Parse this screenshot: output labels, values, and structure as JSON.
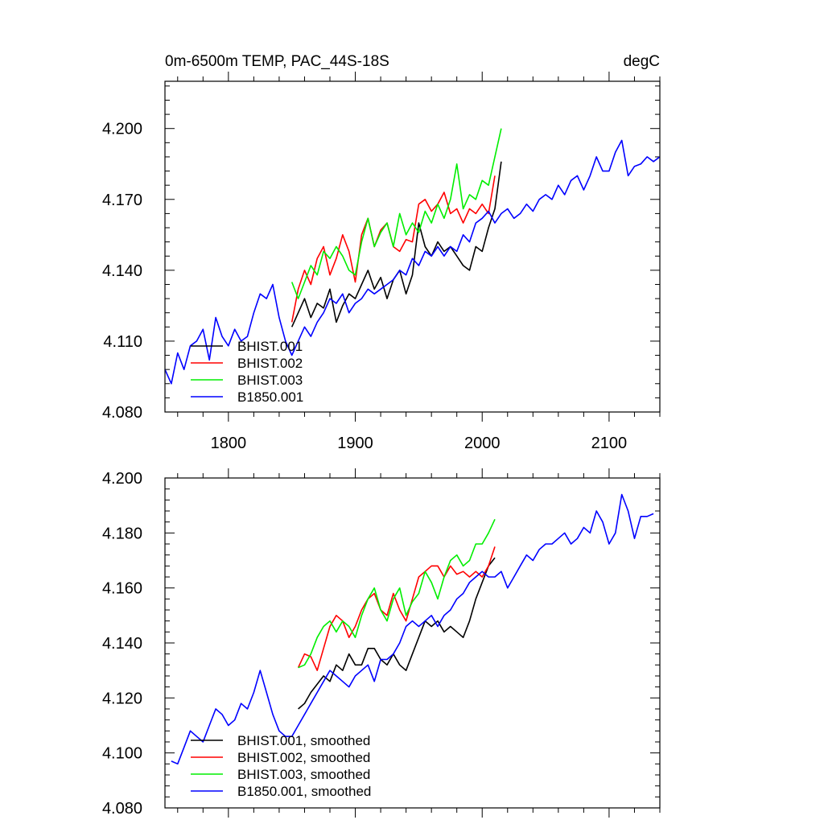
{
  "chart_data": [
    {
      "type": "line",
      "title": "0m-6500m TEMP, PAC_44S-18S",
      "units": "degC",
      "xlim": [
        1750,
        2140
      ],
      "ylim": [
        4.08,
        4.22
      ],
      "x_ticks": [
        1800,
        1900,
        2000,
        2100
      ],
      "x_tick_labels": [
        "1800",
        "1900",
        "2000",
        "2100"
      ],
      "y_ticks": [
        4.08,
        4.11,
        4.14,
        4.17,
        4.2
      ],
      "y_tick_labels": [
        "4.080",
        "4.110",
        "4.140",
        "4.170",
        "4.200"
      ],
      "legend_position": "bottom-left",
      "series": [
        {
          "name": "BHIST.001",
          "color": "#000000",
          "x": [
            1850,
            1855,
            1860,
            1865,
            1870,
            1875,
            1880,
            1885,
            1890,
            1895,
            1900,
            1905,
            1910,
            1915,
            1920,
            1925,
            1930,
            1935,
            1940,
            1945,
            1950,
            1955,
            1960,
            1965,
            1970,
            1975,
            1980,
            1985,
            1990,
            1995,
            2000,
            2005,
            2010,
            2015
          ],
          "values": [
            4.116,
            4.122,
            4.128,
            4.12,
            4.126,
            4.124,
            4.132,
            4.118,
            4.125,
            4.13,
            4.128,
            4.134,
            4.14,
            4.132,
            4.137,
            4.128,
            4.136,
            4.14,
            4.13,
            4.138,
            4.16,
            4.15,
            4.146,
            4.152,
            4.148,
            4.15,
            4.146,
            4.142,
            4.14,
            4.15,
            4.148,
            4.158,
            4.166,
            4.186
          ]
        },
        {
          "name": "BHIST.002",
          "color": "#ff0000",
          "x": [
            1850,
            1855,
            1860,
            1865,
            1870,
            1875,
            1880,
            1885,
            1890,
            1895,
            1900,
            1905,
            1910,
            1915,
            1920,
            1925,
            1930,
            1935,
            1940,
            1945,
            1950,
            1955,
            1960,
            1965,
            1970,
            1975,
            1980,
            1985,
            1990,
            1995,
            2000,
            2005,
            2010
          ],
          "values": [
            4.118,
            4.132,
            4.14,
            4.134,
            4.145,
            4.15,
            4.138,
            4.145,
            4.155,
            4.148,
            4.135,
            4.155,
            4.162,
            4.15,
            4.157,
            4.16,
            4.15,
            4.148,
            4.153,
            4.152,
            4.168,
            4.17,
            4.165,
            4.168,
            4.173,
            4.164,
            4.166,
            4.16,
            4.166,
            4.164,
            4.168,
            4.164,
            4.18
          ]
        },
        {
          "name": "BHIST.003",
          "color": "#00ee00",
          "x": [
            1850,
            1855,
            1860,
            1865,
            1870,
            1875,
            1880,
            1885,
            1890,
            1895,
            1900,
            1905,
            1910,
            1915,
            1920,
            1925,
            1930,
            1935,
            1940,
            1945,
            1950,
            1955,
            1960,
            1965,
            1970,
            1975,
            1980,
            1985,
            1990,
            1995,
            2000,
            2005,
            2010,
            2015
          ],
          "values": [
            4.135,
            4.128,
            4.135,
            4.142,
            4.138,
            4.148,
            4.145,
            4.15,
            4.146,
            4.14,
            4.138,
            4.152,
            4.162,
            4.15,
            4.156,
            4.16,
            4.15,
            4.164,
            4.155,
            4.16,
            4.156,
            4.165,
            4.16,
            4.168,
            4.162,
            4.17,
            4.185,
            4.166,
            4.172,
            4.17,
            4.178,
            4.176,
            4.188,
            4.2
          ]
        },
        {
          "name": "B1850.001",
          "color": "#0000ff",
          "x": [
            1750,
            1755,
            1760,
            1765,
            1770,
            1775,
            1780,
            1785,
            1790,
            1795,
            1800,
            1805,
            1810,
            1815,
            1820,
            1825,
            1830,
            1835,
            1840,
            1845,
            1850,
            1855,
            1860,
            1865,
            1870,
            1875,
            1880,
            1885,
            1890,
            1895,
            1900,
            1905,
            1910,
            1915,
            1920,
            1925,
            1930,
            1935,
            1940,
            1945,
            1950,
            1955,
            1960,
            1965,
            1970,
            1975,
            1980,
            1985,
            1990,
            1995,
            2000,
            2005,
            2010,
            2015,
            2020,
            2025,
            2030,
            2035,
            2040,
            2045,
            2050,
            2055,
            2060,
            2065,
            2070,
            2075,
            2080,
            2085,
            2090,
            2095,
            2100,
            2105,
            2110,
            2115,
            2120,
            2125,
            2130,
            2135,
            2140
          ],
          "values": [
            4.098,
            4.092,
            4.105,
            4.098,
            4.108,
            4.11,
            4.115,
            4.102,
            4.12,
            4.112,
            4.108,
            4.115,
            4.11,
            4.112,
            4.122,
            4.13,
            4.128,
            4.134,
            4.12,
            4.11,
            4.104,
            4.11,
            4.116,
            4.112,
            4.118,
            4.122,
            4.128,
            4.126,
            4.13,
            4.122,
            4.126,
            4.128,
            4.132,
            4.13,
            4.132,
            4.134,
            4.136,
            4.14,
            4.138,
            4.145,
            4.142,
            4.148,
            4.146,
            4.15,
            4.146,
            4.15,
            4.148,
            4.155,
            4.152,
            4.16,
            4.162,
            4.165,
            4.16,
            4.164,
            4.166,
            4.162,
            4.164,
            4.168,
            4.165,
            4.17,
            4.172,
            4.17,
            4.176,
            4.172,
            4.178,
            4.18,
            4.174,
            4.18,
            4.188,
            4.182,
            4.182,
            4.19,
            4.195,
            4.18,
            4.184,
            4.185,
            4.188,
            4.186,
            4.188
          ]
        }
      ]
    },
    {
      "type": "line",
      "title": "",
      "xlim": [
        1750,
        2140
      ],
      "ylim": [
        4.08,
        4.2
      ],
      "x_ticks": [
        1800,
        1900,
        2000,
        2100
      ],
      "y_ticks": [
        4.08,
        4.1,
        4.12,
        4.14,
        4.16,
        4.18,
        4.2
      ],
      "y_tick_labels": [
        "4.080",
        "4.100",
        "4.120",
        "4.140",
        "4.160",
        "4.180",
        "4.200"
      ],
      "legend_position": "bottom-left",
      "series": [
        {
          "name": "BHIST.001, smoothed",
          "color": "#000000",
          "x": [
            1855,
            1860,
            1865,
            1870,
            1875,
            1880,
            1885,
            1890,
            1895,
            1900,
            1905,
            1910,
            1915,
            1920,
            1925,
            1930,
            1935,
            1940,
            1945,
            1950,
            1955,
            1960,
            1965,
            1970,
            1975,
            1980,
            1985,
            1990,
            1995,
            2000,
            2005,
            2010
          ],
          "values": [
            4.116,
            4.118,
            4.122,
            4.125,
            4.128,
            4.126,
            4.132,
            4.13,
            4.136,
            4.132,
            4.132,
            4.138,
            4.138,
            4.134,
            4.132,
            4.136,
            4.132,
            4.13,
            4.136,
            4.142,
            4.148,
            4.146,
            4.148,
            4.144,
            4.146,
            4.144,
            4.142,
            4.148,
            4.156,
            4.162,
            4.168,
            4.171
          ]
        },
        {
          "name": "BHIST.002, smoothed",
          "color": "#ff0000",
          "x": [
            1855,
            1860,
            1865,
            1870,
            1875,
            1880,
            1885,
            1890,
            1895,
            1900,
            1905,
            1910,
            1915,
            1920,
            1925,
            1930,
            1935,
            1940,
            1945,
            1950,
            1955,
            1960,
            1965,
            1970,
            1975,
            1980,
            1985,
            1990,
            1995,
            2000,
            2005,
            2010
          ],
          "values": [
            4.131,
            4.136,
            4.135,
            4.13,
            4.138,
            4.146,
            4.15,
            4.148,
            4.142,
            4.146,
            4.152,
            4.156,
            4.158,
            4.152,
            4.15,
            4.158,
            4.152,
            4.148,
            4.156,
            4.164,
            4.166,
            4.168,
            4.168,
            4.164,
            4.168,
            4.165,
            4.166,
            4.164,
            4.166,
            4.164,
            4.168,
            4.175
          ]
        },
        {
          "name": "BHIST.003, smoothed",
          "color": "#00ee00",
          "x": [
            1855,
            1860,
            1865,
            1870,
            1875,
            1880,
            1885,
            1890,
            1895,
            1900,
            1905,
            1910,
            1915,
            1920,
            1925,
            1930,
            1935,
            1940,
            1945,
            1950,
            1955,
            1960,
            1965,
            1970,
            1975,
            1980,
            1985,
            1990,
            1995,
            2000,
            2005,
            2010
          ],
          "values": [
            4.131,
            4.132,
            4.136,
            4.142,
            4.146,
            4.148,
            4.144,
            4.148,
            4.146,
            4.142,
            4.15,
            4.156,
            4.16,
            4.152,
            4.148,
            4.156,
            4.16,
            4.15,
            4.155,
            4.158,
            4.166,
            4.162,
            4.156,
            4.164,
            4.17,
            4.172,
            4.168,
            4.17,
            4.176,
            4.176,
            4.18,
            4.185
          ]
        },
        {
          "name": "B1850.001, smoothed",
          "color": "#0000ff",
          "x": [
            1755,
            1760,
            1765,
            1770,
            1775,
            1780,
            1785,
            1790,
            1795,
            1800,
            1805,
            1810,
            1815,
            1820,
            1825,
            1830,
            1835,
            1840,
            1845,
            1850,
            1855,
            1860,
            1865,
            1870,
            1875,
            1880,
            1885,
            1890,
            1895,
            1900,
            1905,
            1910,
            1915,
            1920,
            1925,
            1930,
            1935,
            1940,
            1945,
            1950,
            1955,
            1960,
            1965,
            1970,
            1975,
            1980,
            1985,
            1990,
            1995,
            2000,
            2005,
            2010,
            2015,
            2020,
            2025,
            2030,
            2035,
            2040,
            2045,
            2050,
            2055,
            2060,
            2065,
            2070,
            2075,
            2080,
            2085,
            2090,
            2095,
            2100,
            2105,
            2110,
            2115,
            2120,
            2125,
            2130,
            2135
          ],
          "values": [
            4.097,
            4.096,
            4.102,
            4.108,
            4.106,
            4.104,
            4.11,
            4.116,
            4.114,
            4.11,
            4.112,
            4.118,
            4.116,
            4.122,
            4.13,
            4.122,
            4.114,
            4.108,
            4.106,
            4.106,
            4.11,
            4.114,
            4.118,
            4.122,
            4.126,
            4.13,
            4.128,
            4.126,
            4.124,
            4.128,
            4.13,
            4.132,
            4.126,
            4.134,
            4.134,
            4.136,
            4.14,
            4.146,
            4.148,
            4.146,
            4.148,
            4.15,
            4.146,
            4.15,
            4.152,
            4.156,
            4.158,
            4.162,
            4.164,
            4.166,
            4.164,
            4.164,
            4.166,
            4.16,
            4.164,
            4.168,
            4.172,
            4.17,
            4.174,
            4.176,
            4.176,
            4.178,
            4.18,
            4.176,
            4.178,
            4.182,
            4.18,
            4.188,
            4.184,
            4.176,
            4.18,
            4.194,
            4.188,
            4.178,
            4.186,
            4.186,
            4.187
          ]
        }
      ]
    }
  ]
}
